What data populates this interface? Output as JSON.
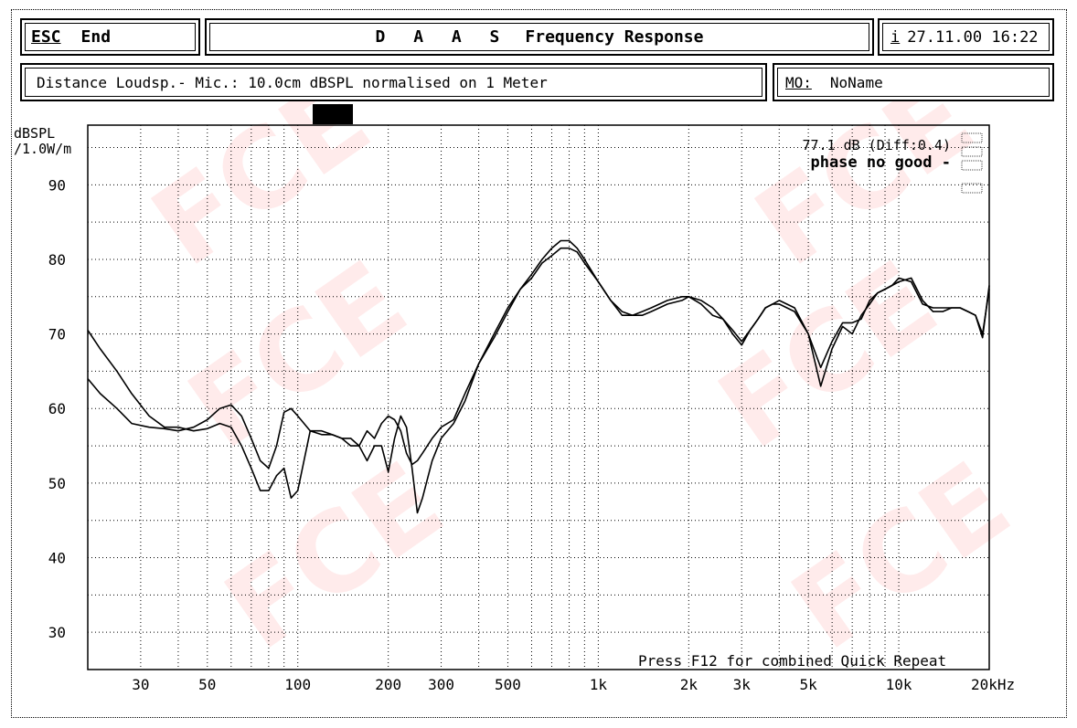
{
  "header": {
    "esc_label": "ESC",
    "end_label": "End",
    "title_letters": "D A A S",
    "title_rest": "Frequency Response",
    "info_label": "i",
    "datetime": "27.11.00 16:22"
  },
  "subheader": {
    "distance_text": "Distance Loudsp.- Mic.: 10.0cm dBSPL normalised on 1 Meter",
    "mo_label": "MO:",
    "mo_value": "NoName"
  },
  "readout": {
    "level": "77.1 dB (Diff:0.4)",
    "phase": "phase no good  -"
  },
  "footer": {
    "press_hint": "Press F12 for combined Quick Repeat"
  },
  "watermark": "FCE",
  "chart_data": {
    "type": "line",
    "ylabel": "dBSPL /1.0W/m",
    "ylabel_line1": "dBSPL",
    "ylabel_line2": "/1.0W/m",
    "x_scale": "log",
    "xlim": [
      20,
      20000
    ],
    "ylim": [
      25,
      98
    ],
    "grid": true,
    "y_ticks": [
      90,
      80,
      70,
      60,
      50,
      40,
      30
    ],
    "x_ticks": [
      {
        "label": "30",
        "value": 30
      },
      {
        "label": "50",
        "value": 50
      },
      {
        "label": "100",
        "value": 100
      },
      {
        "label": "200",
        "value": 200
      },
      {
        "label": "300",
        "value": 300
      },
      {
        "label": "500",
        "value": 500
      },
      {
        "label": "1k",
        "value": 1000
      },
      {
        "label": "2k",
        "value": 2000
      },
      {
        "label": "3k",
        "value": 3000
      },
      {
        "label": "5k",
        "value": 5000
      },
      {
        "label": "10k",
        "value": 10000
      },
      {
        "label": "20kHz",
        "value": 20000
      }
    ],
    "series": [
      {
        "x": [
          20,
          22,
          25,
          28,
          32,
          36,
          40,
          45,
          50,
          55,
          60,
          65,
          70,
          75,
          80,
          85,
          90,
          95,
          100,
          110,
          120,
          130,
          140,
          150,
          160,
          170,
          180,
          190,
          200,
          210,
          220,
          230,
          240,
          250,
          260,
          280,
          300,
          330,
          360,
          400,
          450,
          500,
          550,
          600,
          650,
          700,
          750,
          800,
          850,
          900,
          1000,
          1100,
          1200,
          1300,
          1400,
          1500,
          1700,
          1900,
          2000,
          2200,
          2400,
          2600,
          2800,
          3000,
          3200,
          3400,
          3600,
          3800,
          4000,
          4500,
          5000,
          5500,
          6000,
          6500,
          7000,
          7500,
          8000,
          8500,
          9000,
          9500,
          10000,
          11000,
          12000,
          13000,
          14000,
          15000,
          16000,
          17000,
          18000,
          19000,
          20000
        ],
        "y": [
          64,
          62,
          60,
          58,
          57.5,
          57.3,
          57,
          57.5,
          58.5,
          60,
          60.5,
          59,
          56,
          53,
          52,
          55,
          59.5,
          60,
          59,
          57,
          56.5,
          56.5,
          56,
          55,
          55,
          57,
          56,
          58,
          59,
          58.5,
          57,
          54,
          52.5,
          53,
          54,
          56,
          57.5,
          58.5,
          62,
          66,
          70,
          73.5,
          76,
          78,
          80,
          81.5,
          82.5,
          82.5,
          81.5,
          80,
          77,
          74.5,
          72.5,
          72.5,
          73,
          73.5,
          74.5,
          75,
          75,
          74,
          72.5,
          72,
          70.5,
          69,
          70.5,
          72,
          73.5,
          74,
          74,
          73,
          70,
          65.5,
          69,
          71.5,
          71.5,
          72,
          74.5,
          75.5,
          76,
          76.5,
          77,
          77.5,
          74.5,
          73,
          73,
          73.5,
          73.5,
          73,
          72.5,
          70,
          76
        ]
      },
      {
        "x": [
          20,
          22,
          25,
          28,
          32,
          36,
          40,
          45,
          50,
          55,
          60,
          65,
          70,
          75,
          80,
          85,
          90,
          95,
          100,
          110,
          120,
          130,
          140,
          150,
          160,
          170,
          180,
          190,
          200,
          210,
          220,
          230,
          240,
          250,
          260,
          280,
          300,
          330,
          360,
          400,
          450,
          500,
          550,
          600,
          650,
          700,
          750,
          800,
          850,
          900,
          1000,
          1100,
          1200,
          1300,
          1400,
          1500,
          1700,
          1900,
          2000,
          2200,
          2400,
          2600,
          2800,
          3000,
          3200,
          3400,
          3600,
          3800,
          4000,
          4500,
          5000,
          5500,
          6000,
          6500,
          7000,
          7500,
          8000,
          8500,
          9000,
          9500,
          10000,
          11000,
          12000,
          13000,
          14000,
          15000,
          16000,
          17000,
          18000,
          19000,
          20000
        ],
        "y": [
          70.5,
          68,
          65,
          62,
          59,
          57.5,
          57.5,
          57,
          57.3,
          58,
          57.5,
          55,
          52,
          49,
          49,
          51,
          52,
          48,
          49,
          57,
          57,
          56.5,
          56,
          56,
          55,
          53,
          55,
          55,
          51.5,
          56,
          59,
          57.5,
          52,
          46,
          48,
          53,
          56,
          58,
          61,
          66,
          69.5,
          73,
          76,
          77.5,
          79.5,
          80.5,
          81.5,
          81.5,
          81,
          79.5,
          77,
          74.5,
          73,
          72.5,
          72.5,
          73,
          74,
          74.5,
          75,
          74.5,
          73.5,
          72,
          70,
          68.5,
          70.5,
          72,
          73.5,
          74,
          74.5,
          73.5,
          70,
          63,
          68,
          71,
          70,
          72.5,
          74,
          75.5,
          76,
          76.5,
          77.5,
          77,
          74,
          73.5,
          73.5,
          73.5,
          73.5,
          73,
          72.5,
          69.5,
          76.5
        ]
      }
    ]
  }
}
